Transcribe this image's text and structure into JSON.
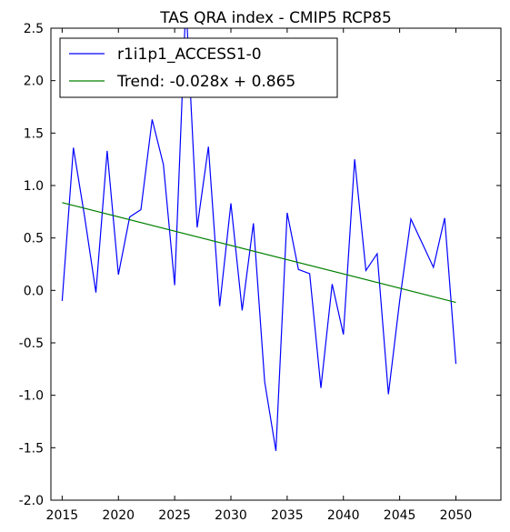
{
  "chart_data": {
    "type": "line",
    "title": "TAS QRA index - CMIP5 RCP85",
    "xlabel": "",
    "ylabel": "",
    "xlim": [
      2014,
      2054
    ],
    "ylim": [
      -2.0,
      2.5
    ],
    "x_ticks": [
      2015,
      2020,
      2025,
      2030,
      2035,
      2040,
      2045,
      2050
    ],
    "y_ticks": [
      "-2.0",
      "-1.5",
      "-1.0",
      "-0.5",
      "0.0",
      "0.5",
      "1.0",
      "1.5",
      "2.0",
      "2.5"
    ],
    "grid": false,
    "legend": "upper-left",
    "series": [
      {
        "name": "r1i1p1_ACCESS1-0",
        "color": "#0000ff",
        "x": [
          2015,
          2016,
          2017,
          2018,
          2019,
          2020,
          2021,
          2022,
          2023,
          2024,
          2025,
          2026,
          2027,
          2028,
          2029,
          2030,
          2031,
          2032,
          2033,
          2034,
          2035,
          2036,
          2037,
          2038,
          2039,
          2040,
          2041,
          2042,
          2043,
          2044,
          2045,
          2046,
          2047,
          2048,
          2049,
          2050
        ],
        "values": [
          -0.1,
          1.36,
          0.7,
          -0.02,
          1.33,
          0.15,
          0.7,
          0.77,
          1.63,
          1.2,
          0.05,
          2.75,
          0.6,
          1.37,
          -0.15,
          0.83,
          -0.19,
          0.64,
          -0.87,
          -1.53,
          0.74,
          0.2,
          0.16,
          -0.93,
          0.06,
          -0.42,
          1.25,
          0.19,
          0.35,
          -0.99,
          -0.1,
          0.68,
          0.45,
          0.22,
          0.69,
          -0.7
        ]
      },
      {
        "name": "Trend: -0.028x + 0.865",
        "color": "#008000",
        "x": [
          2015,
          2050
        ],
        "values": [
          0.837,
          -0.115
        ]
      }
    ]
  }
}
